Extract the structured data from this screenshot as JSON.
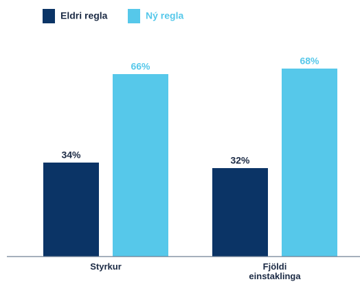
{
  "chart_data": {
    "type": "bar",
    "categories": [
      "Styrkur",
      "Fjöldi einstaklinga"
    ],
    "series": [
      {
        "name": "Eldri regla",
        "color": "#0b3466",
        "values": [
          34,
          32
        ],
        "value_labels": [
          "34%",
          "32%"
        ]
      },
      {
        "name": "Ný regla",
        "color": "#56c8ea",
        "values": [
          66,
          68
        ],
        "value_labels": [
          "66%",
          "68%"
        ]
      }
    ]
  }
}
